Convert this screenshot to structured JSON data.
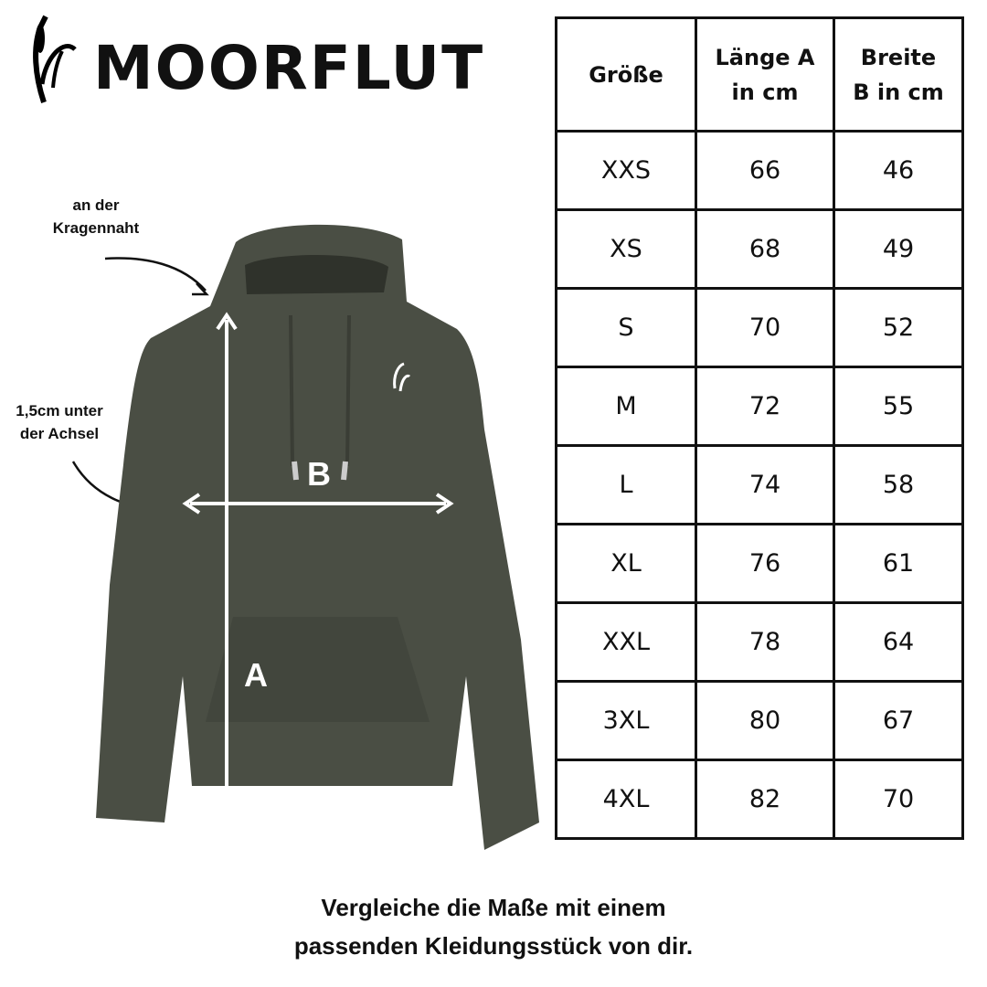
{
  "brand": {
    "name": "MOORFLUT"
  },
  "annotations": {
    "collar": [
      "an der",
      "Kragennaht"
    ],
    "armpit": [
      "1,5cm unter",
      "der Achsel"
    ]
  },
  "hoodie": {
    "color": "#4a4e44",
    "label_a": "A",
    "label_b": "B"
  },
  "table": {
    "headers": [
      [
        "Größe"
      ],
      [
        "Länge A",
        "in cm"
      ],
      [
        "Breite",
        "B in cm"
      ]
    ],
    "rows": [
      [
        "XXS",
        "66",
        "46"
      ],
      [
        "XS",
        "68",
        "49"
      ],
      [
        "S",
        "70",
        "52"
      ],
      [
        "M",
        "72",
        "55"
      ],
      [
        "L",
        "74",
        "58"
      ],
      [
        "XL",
        "76",
        "61"
      ],
      [
        "XXL",
        "78",
        "64"
      ],
      [
        "3XL",
        "80",
        "67"
      ],
      [
        "4XL",
        "82",
        "70"
      ]
    ]
  },
  "footer": [
    "Vergleiche die Maße mit einem",
    "passenden Kleidungsstück von dir."
  ]
}
